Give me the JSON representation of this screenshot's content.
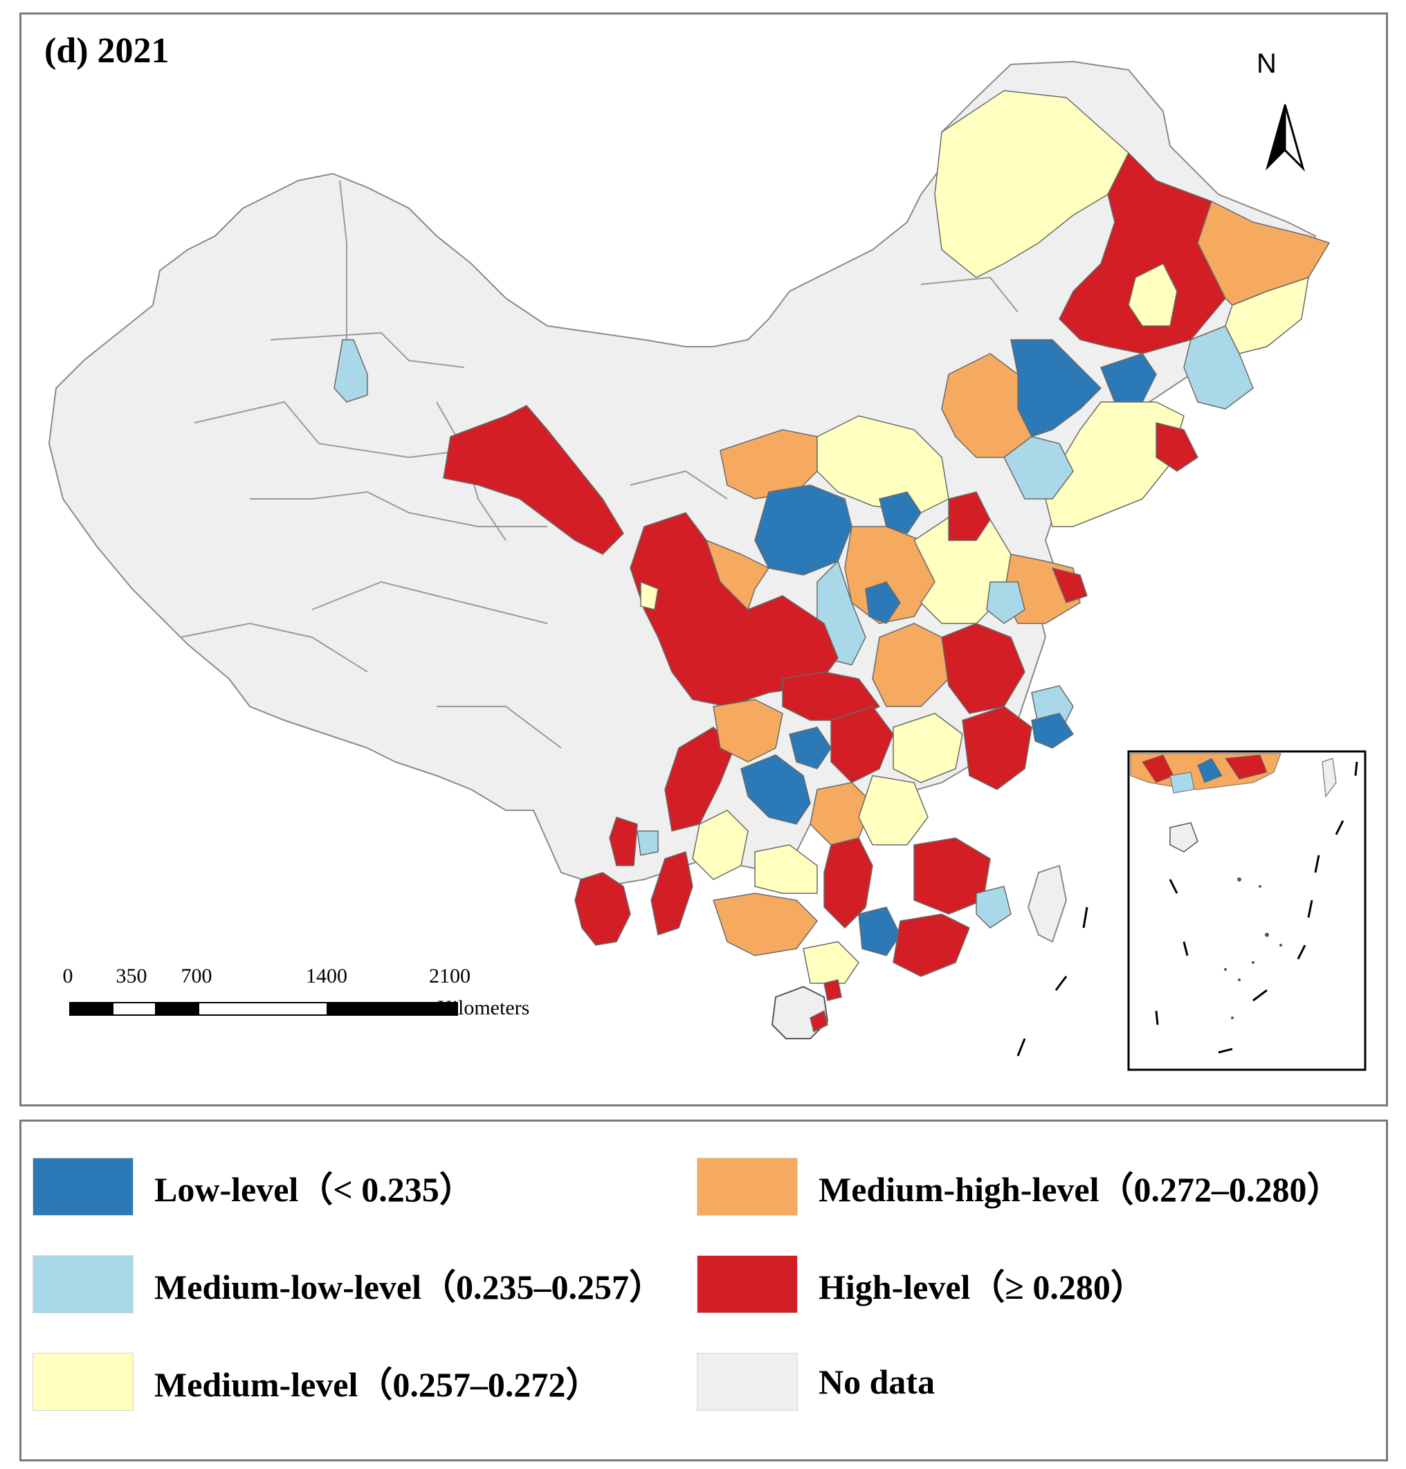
{
  "map": {
    "title": "(d) 2021",
    "north_label": "N",
    "scale_bar": {
      "ticks": [
        "0",
        "350",
        "700",
        "1400",
        "2100"
      ],
      "unit": "Kilometers"
    }
  },
  "colors": {
    "low": "#2B79B6",
    "medium_low": "#A9D8E8",
    "medium": "#FFFFC0",
    "medium_high": "#F6AA5F",
    "high": "#D21E24",
    "no_data": "#EFEFEF"
  },
  "legend": {
    "items": [
      {
        "label": "Low-level（< 0.235）",
        "color": "#2B79B6"
      },
      {
        "label": "Medium-low-level（0.235–0.257）",
        "color": "#A9D8E8"
      },
      {
        "label": "Medium-level（0.257–0.272）",
        "color": "#FFFFC0"
      },
      {
        "label": "Medium-high-level（0.272–0.280）",
        "color": "#F6AA5F"
      },
      {
        "label": "High-level（≥ 0.280）",
        "color": "#D21E24"
      },
      {
        "label": "No data",
        "color": "#EFEFEF"
      }
    ]
  }
}
